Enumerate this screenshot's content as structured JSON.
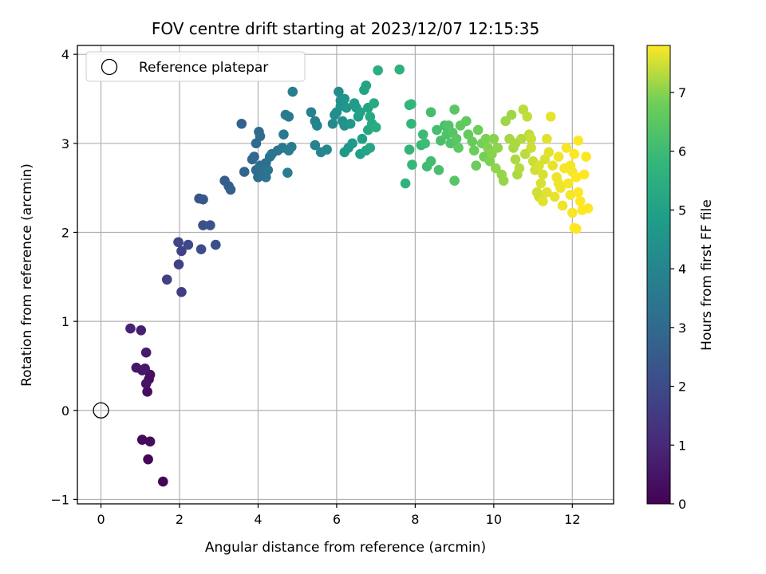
{
  "chart_data": {
    "type": "scatter",
    "title": "FOV centre drift starting at 2023/12/07 12:15:35",
    "xlabel": "Angular distance from reference (arcmin)",
    "ylabel": "Rotation from reference (arcmin)",
    "xlim": [
      -0.6,
      13.05
    ],
    "ylim": [
      -1.05,
      4.1
    ],
    "xticks": [
      0,
      2,
      4,
      6,
      8,
      10,
      12
    ],
    "xtick_labels": [
      "0",
      "2",
      "4",
      "6",
      "8",
      "10",
      "12"
    ],
    "yticks": [
      -1,
      0,
      1,
      2,
      3,
      4
    ],
    "ytick_labels": [
      "−1",
      "0",
      "1",
      "2",
      "3",
      "4"
    ],
    "grid": true,
    "legend": {
      "position": "top-left",
      "entries": [
        "Reference platepar"
      ]
    },
    "reference_point": {
      "x": 0,
      "y": 0,
      "label": "Reference platepar",
      "marker": "open-circle"
    },
    "colorbar": {
      "label": "Hours from first FF file",
      "colormap": "viridis",
      "range": [
        0,
        7.8
      ],
      "ticks": [
        0,
        1,
        2,
        3,
        4,
        5,
        6,
        7
      ],
      "tick_labels": [
        "0",
        "1",
        "2",
        "3",
        "4",
        "5",
        "6",
        "7"
      ]
    },
    "points": [
      [
        1.58,
        -0.8,
        0.1
      ],
      [
        1.2,
        -0.55,
        0.15
      ],
      [
        1.05,
        -0.33,
        0.2
      ],
      [
        1.25,
        -0.35,
        0.25
      ],
      [
        1.18,
        0.21,
        0.3
      ],
      [
        1.22,
        0.35,
        0.35
      ],
      [
        1.25,
        0.4,
        0.4
      ],
      [
        1.15,
        0.3,
        0.45
      ],
      [
        1.05,
        0.45,
        0.5
      ],
      [
        0.9,
        0.48,
        0.55
      ],
      [
        1.12,
        0.47,
        0.6
      ],
      [
        1.15,
        0.65,
        0.65
      ],
      [
        1.02,
        0.9,
        0.75
      ],
      [
        0.75,
        0.92,
        0.85
      ],
      [
        2.05,
        1.33,
        1.6
      ],
      [
        1.68,
        1.47,
        1.7
      ],
      [
        1.98,
        1.64,
        1.75
      ],
      [
        2.05,
        1.79,
        1.8
      ],
      [
        1.97,
        1.89,
        1.85
      ],
      [
        2.22,
        1.86,
        1.95
      ],
      [
        2.55,
        1.81,
        2.05
      ],
      [
        2.92,
        1.86,
        2.15
      ],
      [
        2.6,
        2.08,
        2.2
      ],
      [
        2.78,
        2.08,
        2.25
      ],
      [
        2.5,
        2.38,
        2.35
      ],
      [
        2.6,
        2.37,
        2.4
      ],
      [
        3.15,
        2.58,
        2.55
      ],
      [
        3.25,
        2.52,
        2.6
      ],
      [
        3.3,
        2.48,
        2.65
      ],
      [
        3.58,
        3.22,
        2.75
      ],
      [
        3.65,
        2.68,
        2.8
      ],
      [
        3.9,
        2.85,
        2.9
      ],
      [
        3.85,
        2.82,
        2.95
      ],
      [
        3.95,
        3.0,
        3.0
      ],
      [
        4.02,
        3.13,
        3.05
      ],
      [
        4.05,
        3.08,
        3.1
      ],
      [
        3.95,
        2.7,
        3.1
      ],
      [
        4.0,
        2.62,
        3.15
      ],
      [
        4.05,
        2.75,
        3.2
      ],
      [
        4.2,
        2.78,
        3.2
      ],
      [
        4.1,
        2.65,
        3.25
      ],
      [
        4.2,
        2.62,
        3.3
      ],
      [
        4.3,
        2.85,
        3.35
      ],
      [
        4.25,
        2.7,
        3.4
      ],
      [
        4.35,
        2.88,
        3.4
      ],
      [
        4.5,
        2.92,
        3.45
      ],
      [
        4.62,
        2.95,
        3.5
      ],
      [
        4.65,
        3.1,
        3.55
      ],
      [
        4.7,
        3.32,
        3.6
      ],
      [
        4.78,
        3.3,
        3.6
      ],
      [
        4.85,
        2.96,
        3.65
      ],
      [
        4.78,
        2.92,
        3.7
      ],
      [
        4.75,
        2.67,
        3.7
      ],
      [
        4.88,
        3.58,
        3.75
      ],
      [
        5.35,
        3.35,
        3.85
      ],
      [
        5.45,
        2.98,
        3.9
      ],
      [
        5.45,
        3.25,
        3.95
      ],
      [
        5.5,
        3.2,
        4.0
      ],
      [
        5.6,
        2.9,
        4.05
      ],
      [
        5.75,
        2.93,
        4.1
      ],
      [
        5.9,
        3.22,
        4.15
      ],
      [
        5.95,
        3.32,
        4.2
      ],
      [
        6.0,
        3.35,
        4.25
      ],
      [
        6.05,
        3.58,
        4.3
      ],
      [
        6.1,
        3.48,
        4.35
      ],
      [
        6.15,
        3.25,
        4.4
      ],
      [
        6.2,
        3.2,
        4.45
      ],
      [
        6.1,
        3.42,
        4.5
      ],
      [
        6.2,
        3.5,
        4.55
      ],
      [
        6.25,
        3.4,
        4.6
      ],
      [
        6.35,
        3.22,
        4.65
      ],
      [
        6.2,
        2.9,
        4.7
      ],
      [
        6.3,
        2.95,
        4.7
      ],
      [
        6.4,
        3.0,
        4.75
      ],
      [
        6.45,
        3.45,
        4.8
      ],
      [
        6.5,
        3.4,
        4.85
      ],
      [
        6.55,
        3.3,
        4.9
      ],
      [
        6.6,
        2.88,
        4.9
      ],
      [
        6.65,
        3.05,
        4.95
      ],
      [
        6.6,
        3.35,
        5.0
      ],
      [
        6.7,
        3.6,
        5.05
      ],
      [
        6.75,
        3.65,
        5.1
      ],
      [
        6.8,
        3.4,
        5.1
      ],
      [
        6.75,
        2.92,
        5.15
      ],
      [
        6.85,
        2.95,
        5.2
      ],
      [
        6.8,
        3.15,
        5.25
      ],
      [
        6.85,
        3.3,
        5.3
      ],
      [
        6.9,
        3.22,
        5.3
      ],
      [
        6.95,
        3.45,
        5.35
      ],
      [
        7.0,
        3.18,
        5.4
      ],
      [
        7.05,
        3.82,
        5.45
      ],
      [
        7.6,
        3.83,
        5.6
      ],
      [
        7.75,
        2.55,
        5.65
      ],
      [
        7.85,
        2.93,
        5.7
      ],
      [
        7.85,
        3.43,
        5.75
      ],
      [
        7.9,
        3.44,
        5.8
      ],
      [
        7.9,
        3.22,
        5.8
      ],
      [
        7.92,
        2.76,
        5.85
      ],
      [
        8.15,
        2.98,
        5.9
      ],
      [
        8.2,
        3.1,
        5.95
      ],
      [
        8.25,
        3.0,
        6.0
      ],
      [
        8.3,
        2.74,
        6.05
      ],
      [
        8.4,
        2.8,
        6.05
      ],
      [
        8.4,
        3.35,
        6.1
      ],
      [
        8.55,
        3.15,
        6.15
      ],
      [
        8.6,
        2.7,
        6.2
      ],
      [
        8.65,
        3.03,
        6.2
      ],
      [
        8.75,
        3.2,
        6.25
      ],
      [
        8.8,
        3.1,
        6.3
      ],
      [
        8.85,
        3.2,
        6.35
      ],
      [
        8.9,
        3.0,
        6.35
      ],
      [
        8.95,
        3.12,
        6.4
      ],
      [
        9.0,
        2.58,
        6.45
      ],
      [
        9.0,
        3.38,
        6.5
      ],
      [
        9.05,
        3.05,
        6.5
      ],
      [
        9.1,
        2.95,
        6.55
      ],
      [
        9.15,
        3.2,
        6.6
      ],
      [
        9.3,
        3.25,
        6.6
      ],
      [
        9.35,
        3.1,
        6.65
      ],
      [
        9.45,
        3.02,
        6.7
      ],
      [
        9.5,
        2.92,
        6.75
      ],
      [
        9.55,
        2.75,
        6.75
      ],
      [
        9.6,
        3.15,
        6.8
      ],
      [
        9.7,
        3.0,
        6.85
      ],
      [
        9.75,
        2.85,
        6.85
      ],
      [
        9.8,
        3.05,
        6.9
      ],
      [
        9.85,
        2.95,
        6.95
      ],
      [
        9.9,
        2.8,
        6.95
      ],
      [
        9.95,
        2.88,
        7.0
      ],
      [
        10.0,
        3.05,
        7.0
      ],
      [
        10.05,
        2.72,
        7.05
      ],
      [
        10.1,
        2.95,
        7.05
      ],
      [
        10.2,
        2.65,
        7.1
      ],
      [
        10.25,
        2.58,
        7.1
      ],
      [
        10.3,
        3.25,
        7.15
      ],
      [
        10.45,
        3.32,
        7.15
      ],
      [
        10.4,
        3.05,
        7.2
      ],
      [
        10.5,
        2.95,
        7.2
      ],
      [
        10.55,
        2.82,
        7.25
      ],
      [
        10.6,
        2.65,
        7.25
      ],
      [
        10.65,
        2.72,
        7.3
      ],
      [
        10.7,
        3.05,
        7.3
      ],
      [
        10.75,
        3.38,
        7.35
      ],
      [
        10.8,
        2.88,
        7.35
      ],
      [
        10.85,
        3.3,
        7.4
      ],
      [
        10.9,
        3.1,
        7.4
      ],
      [
        10.95,
        2.95,
        7.45
      ],
      [
        11.0,
        2.8,
        7.45
      ],
      [
        11.05,
        2.7,
        7.5
      ],
      [
        11.1,
        2.45,
        7.5
      ],
      [
        11.15,
        2.4,
        7.5
      ],
      [
        11.2,
        2.55,
        7.55
      ],
      [
        11.25,
        2.65,
        7.55
      ],
      [
        11.3,
        2.82,
        7.55
      ],
      [
        11.35,
        3.05,
        7.6
      ],
      [
        11.35,
        2.45,
        7.6
      ],
      [
        11.4,
        2.9,
        7.6
      ],
      [
        11.45,
        3.3,
        7.65
      ],
      [
        11.5,
        2.75,
        7.65
      ],
      [
        11.55,
        2.4,
        7.65
      ],
      [
        11.6,
        2.62,
        7.7
      ],
      [
        11.65,
        2.85,
        7.7
      ],
      [
        11.7,
        2.5,
        7.7
      ],
      [
        11.75,
        2.3,
        7.7
      ],
      [
        11.8,
        2.72,
        7.75
      ],
      [
        11.85,
        2.95,
        7.75
      ],
      [
        11.9,
        2.55,
        7.75
      ],
      [
        11.95,
        2.42,
        7.75
      ],
      [
        12.0,
        2.68,
        7.75
      ],
      [
        12.0,
        2.22,
        7.75
      ],
      [
        12.05,
        2.88,
        7.8
      ],
      [
        12.05,
        2.05,
        7.8
      ],
      [
        12.1,
        2.62,
        7.8
      ],
      [
        12.15,
        2.45,
        7.8
      ],
      [
        12.15,
        3.03,
        7.8
      ],
      [
        12.2,
        2.35,
        7.8
      ],
      [
        12.25,
        2.25,
        7.8
      ],
      [
        12.3,
        2.65,
        7.8
      ],
      [
        12.35,
        2.85,
        7.8
      ],
      [
        12.4,
        2.27,
        7.8
      ],
      [
        12.1,
        2.04,
        7.8
      ],
      [
        11.95,
        2.75,
        7.75
      ],
      [
        11.65,
        2.55,
        7.7
      ],
      [
        11.25,
        2.35,
        7.6
      ],
      [
        11.15,
        2.75,
        7.55
      ],
      [
        10.95,
        3.05,
        7.45
      ],
      [
        10.55,
        3.0,
        7.25
      ]
    ]
  }
}
